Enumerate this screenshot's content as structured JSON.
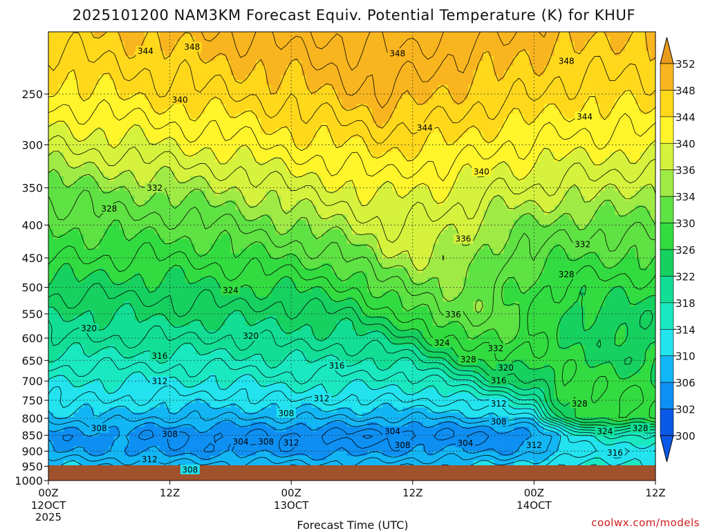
{
  "chart_data": {
    "type": "heatmap",
    "title": "2025101200 NAM3KM Forecast Equiv. Potential Temperature (K) for KHUF",
    "xlabel": "Forecast Time (UTC)",
    "ylabel": "",
    "credit": "coolwx.com/models",
    "x_range_hours": [
      0,
      60
    ],
    "y_range_hpa": [
      200,
      1000
    ],
    "y_scale": "log",
    "y_ticks": [
      250,
      300,
      350,
      400,
      450,
      500,
      550,
      600,
      650,
      700,
      750,
      800,
      850,
      900,
      950,
      1000
    ],
    "x_ticks": [
      {
        "hour": 0,
        "label": "00Z",
        "sub": "12OCT",
        "sub2": "2025"
      },
      {
        "hour": 12,
        "label": "12Z",
        "sub": "",
        "sub2": ""
      },
      {
        "hour": 24,
        "label": "00Z",
        "sub": "13OCT",
        "sub2": ""
      },
      {
        "hour": 36,
        "label": "12Z",
        "sub": "",
        "sub2": ""
      },
      {
        "hour": 48,
        "label": "00Z",
        "sub": "14OCT",
        "sub2": ""
      },
      {
        "hour": 60,
        "label": "12Z",
        "sub": "",
        "sub2": ""
      }
    ],
    "colorbar": {
      "levels": [
        300,
        302,
        306,
        310,
        314,
        318,
        322,
        326,
        330,
        334,
        336,
        340,
        344,
        348,
        352
      ],
      "labels": [
        "352",
        "348",
        "344",
        "340",
        "336",
        "334",
        "330",
        "326",
        "322",
        "318",
        "314",
        "310",
        "306",
        "302",
        "300"
      ],
      "colors": [
        "#0a59e6",
        "#0e8ff2",
        "#13b6f5",
        "#22e3ee",
        "#1ae8c0",
        "#12de96",
        "#16d160",
        "#32dc40",
        "#5fe243",
        "#a0ea45",
        "#d6f23d",
        "#fff52a",
        "#ffd81c",
        "#f9b51f"
      ]
    },
    "profile_levels_hpa": [
      1000,
      950,
      900,
      850,
      820,
      800,
      750,
      700,
      650,
      600,
      550,
      500,
      450,
      400,
      350,
      300,
      250,
      200
    ],
    "profile_times_hours": [
      0,
      6,
      12,
      18,
      24,
      30,
      33,
      36,
      39,
      42,
      45,
      48,
      51,
      54,
      57,
      60
    ],
    "profiles": [
      [
        316,
        310,
        306,
        305,
        307,
        309,
        312,
        314,
        317,
        320,
        322,
        325,
        328,
        330,
        333,
        338,
        343,
        347
      ],
      [
        315,
        310,
        306,
        305,
        307,
        309,
        312,
        314,
        317,
        320,
        322,
        325,
        328,
        331,
        334,
        339,
        344,
        348
      ],
      [
        314,
        309,
        305,
        304,
        306,
        308,
        311,
        314,
        317,
        320,
        323,
        325,
        328,
        331,
        335,
        340,
        345,
        349
      ],
      [
        314,
        309,
        305,
        304,
        306,
        308,
        311,
        314,
        317,
        320,
        323,
        326,
        329,
        332,
        336,
        341,
        346,
        350
      ],
      [
        313,
        309,
        305,
        304,
        306,
        308,
        312,
        315,
        318,
        321,
        323,
        326,
        330,
        334,
        338,
        343,
        347,
        351
      ],
      [
        313,
        309,
        305,
        303,
        306,
        308,
        312,
        315,
        318,
        321,
        324,
        328,
        332,
        336,
        340,
        344,
        349,
        353
      ],
      [
        313,
        309,
        305,
        303,
        306,
        308,
        312,
        315,
        318,
        322,
        327,
        331,
        335,
        338,
        341,
        345,
        350,
        353
      ],
      [
        314,
        310,
        306,
        303,
        306,
        308,
        312,
        315,
        319,
        324,
        329,
        333,
        336,
        338,
        340,
        344,
        349,
        353
      ],
      [
        314,
        310,
        306,
        304,
        306,
        308,
        312,
        316,
        322,
        328,
        332,
        334,
        335,
        337,
        340,
        344,
        348,
        352
      ],
      [
        314,
        310,
        306,
        304,
        306,
        309,
        313,
        319,
        326,
        330,
        333,
        334,
        335,
        336,
        339,
        343,
        347,
        351
      ],
      [
        315,
        311,
        306,
        304,
        307,
        310,
        315,
        323,
        328,
        330,
        331,
        331,
        332,
        334,
        338,
        342,
        347,
        350
      ],
      [
        316,
        312,
        307,
        305,
        308,
        312,
        318,
        324,
        327,
        328,
        328,
        329,
        331,
        334,
        338,
        342,
        346,
        349
      ],
      [
        317,
        314,
        310,
        312,
        318,
        324,
        327,
        328,
        327,
        326,
        326,
        327,
        330,
        333,
        337,
        341,
        345,
        349
      ],
      [
        317,
        315,
        312,
        315,
        322,
        327,
        328,
        327,
        326,
        325,
        325,
        327,
        330,
        333,
        337,
        341,
        345,
        349
      ],
      [
        317,
        315,
        312,
        316,
        323,
        328,
        328,
        327,
        325,
        325,
        325,
        327,
        330,
        333,
        336,
        341,
        345,
        348
      ],
      [
        317,
        315,
        312,
        316,
        323,
        328,
        328,
        327,
        325,
        325,
        325,
        327,
        330,
        333,
        336,
        341,
        345,
        348
      ]
    ],
    "contour_labels": [
      {
        "value": "344",
        "t": 9.6,
        "p": 214
      },
      {
        "value": "348",
        "t": 14.2,
        "p": 211
      },
      {
        "value": "348",
        "t": 34.5,
        "p": 216
      },
      {
        "value": "348",
        "t": 51.2,
        "p": 222
      },
      {
        "value": "340",
        "t": 13.0,
        "p": 255
      },
      {
        "value": "344",
        "t": 37.2,
        "p": 282
      },
      {
        "value": "344",
        "t": 53.0,
        "p": 271
      },
      {
        "value": "340",
        "t": 42.8,
        "p": 330
      },
      {
        "value": "332",
        "t": 10.5,
        "p": 350
      },
      {
        "value": "328",
        "t": 6.0,
        "p": 377
      },
      {
        "value": "336",
        "t": 41.0,
        "p": 420
      },
      {
        "value": "332",
        "t": 52.8,
        "p": 428
      },
      {
        "value": "328",
        "t": 51.2,
        "p": 477
      },
      {
        "value": "324",
        "t": 18.0,
        "p": 505
      },
      {
        "value": "336",
        "t": 40.0,
        "p": 551
      },
      {
        "value": "320",
        "t": 4.0,
        "p": 579
      },
      {
        "value": "320",
        "t": 20.0,
        "p": 595
      },
      {
        "value": "324",
        "t": 38.9,
        "p": 610
      },
      {
        "value": "332",
        "t": 44.2,
        "p": 622
      },
      {
        "value": "316",
        "t": 11.0,
        "p": 639
      },
      {
        "value": "328",
        "t": 41.5,
        "p": 647
      },
      {
        "value": "320",
        "t": 45.2,
        "p": 667
      },
      {
        "value": "316",
        "t": 28.5,
        "p": 662
      },
      {
        "value": "312",
        "t": 11.0,
        "p": 700
      },
      {
        "value": "316",
        "t": 44.5,
        "p": 698
      },
      {
        "value": "312",
        "t": 27.0,
        "p": 744
      },
      {
        "value": "312",
        "t": 44.5,
        "p": 758
      },
      {
        "value": "328",
        "t": 52.5,
        "p": 758
      },
      {
        "value": "308",
        "t": 23.5,
        "p": 785
      },
      {
        "value": "308",
        "t": 44.5,
        "p": 809
      },
      {
        "value": "308",
        "t": 5.0,
        "p": 828
      },
      {
        "value": "328",
        "t": 58.5,
        "p": 828
      },
      {
        "value": "304",
        "t": 34.0,
        "p": 838
      },
      {
        "value": "324",
        "t": 55.0,
        "p": 838
      },
      {
        "value": "308",
        "t": 12.0,
        "p": 846
      },
      {
        "value": "304",
        "t": 19.0,
        "p": 869
      },
      {
        "value": "308",
        "t": 21.5,
        "p": 869
      },
      {
        "value": "312",
        "t": 24.0,
        "p": 872
      },
      {
        "value": "308",
        "t": 35.0,
        "p": 880
      },
      {
        "value": "304",
        "t": 41.2,
        "p": 874
      },
      {
        "value": "312",
        "t": 48.0,
        "p": 880
      },
      {
        "value": "316",
        "t": 56.0,
        "p": 904
      },
      {
        "value": "312",
        "t": 10.0,
        "p": 926
      },
      {
        "value": "308",
        "t": 14.0,
        "p": 961
      }
    ]
  }
}
